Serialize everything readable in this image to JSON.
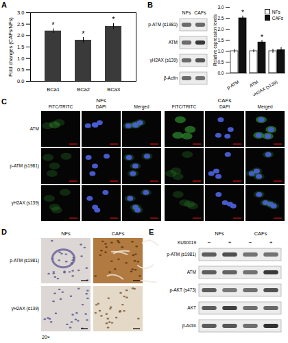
{
  "chart_data": [
    {
      "type": "bar",
      "title": "A",
      "categories": [
        "BCa1",
        "BCa2",
        "BCa3"
      ],
      "values": [
        2.2,
        1.8,
        2.4
      ],
      "errors": [
        0.1,
        0.12,
        0.13
      ],
      "color": "#3a3a3a",
      "y_label": "Fold changes (CAFs/NFs)",
      "ylim": [
        0,
        3
      ],
      "yticks": [
        {
          "value": 0,
          "label": "0.0"
        },
        0.5,
        {
          "value": 1,
          "label": "1.0"
        },
        1.5,
        {
          "value": 2,
          "label": "2.0"
        },
        2.5,
        {
          "value": 3,
          "label": "3.0"
        }
      ],
      "annotations": [
        {
          "category": "BCa1",
          "text": "*"
        },
        {
          "category": "BCa2",
          "text": "*"
        },
        {
          "category": "BCa3",
          "text": "*"
        }
      ]
    },
    {
      "type": "bar",
      "categories": [
        "p-ATM",
        "ATM",
        "γH2AX (s139)"
      ],
      "series": [
        {
          "name": "NFs",
          "color": "#ffffff",
          "values": [
            1.0,
            1.0,
            1.0
          ],
          "errors": [
            0.08,
            0.07,
            0.09
          ]
        },
        {
          "name": "CAFs",
          "color": "#111111",
          "values": [
            2.5,
            1.4,
            1.05
          ],
          "errors": [
            0.1,
            0.09,
            0.12
          ]
        }
      ],
      "y_label": "Relative expression levels",
      "ylim": [
        0,
        3
      ],
      "yticks": [
        {
          "value": 0,
          "label": "0.0"
        },
        0.5,
        {
          "value": 1,
          "label": "1.0"
        },
        1.5,
        {
          "value": 2,
          "label": "2.0"
        },
        2.5,
        {
          "value": 3,
          "label": "3.0"
        }
      ],
      "legend": "top-right",
      "annotations": [
        {
          "category": "p-ATM",
          "series": "CAFs",
          "text": "*"
        },
        {
          "category": "ATM",
          "series": "CAFs",
          "text": "*"
        }
      ]
    }
  ],
  "panels": {
    "blot_B": {
      "title": "B",
      "columns": [
        "NFs",
        "CAFs"
      ],
      "rows": [
        "p-ATM (s1981)",
        "ATM",
        "γH2AX (s139)",
        "β-Actin"
      ]
    },
    "panel_C": {
      "title": "C",
      "groups": [
        "NFs",
        "CAFs"
      ],
      "columns": [
        "FITC/TRITC",
        "DAPI",
        "Merged"
      ],
      "rows": [
        "ATM",
        "p-ATM (s1981)",
        "γH2AX (s139)"
      ]
    },
    "panel_D": {
      "title": "D",
      "columns": [
        "NFs",
        "CAFs"
      ],
      "rows": [
        "p-ATM (s1981)",
        "γH2AX (s139)"
      ],
      "magnification": "20×"
    },
    "panel_E": {
      "title": "E",
      "columns": [
        "NFs",
        "CAFs"
      ],
      "treatment": "KU60019",
      "treatment_marks": [
        "−",
        "+",
        "−",
        "+"
      ],
      "rows": [
        "p-ATM (s1981)",
        "ATM",
        "p-AKT (s473)",
        "AKT",
        "β-Actin"
      ]
    }
  }
}
